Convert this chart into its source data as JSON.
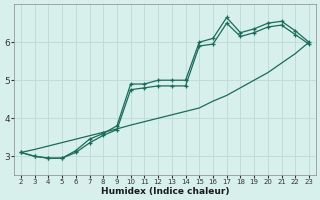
{
  "xlabel": "Humidex (Indice chaleur)",
  "x": [
    2,
    3,
    4,
    5,
    6,
    7,
    8,
    9,
    10,
    11,
    12,
    13,
    14,
    15,
    16,
    17,
    18,
    19,
    20,
    21,
    22,
    23
  ],
  "line_upper": [
    3.1,
    3.0,
    2.95,
    2.95,
    3.15,
    3.45,
    3.6,
    3.8,
    4.9,
    4.9,
    5.0,
    5.0,
    5.0,
    6.0,
    6.1,
    6.65,
    6.25,
    6.35,
    6.5,
    6.55,
    6.3,
    6.0
  ],
  "line_lower": [
    3.1,
    3.0,
    2.95,
    2.95,
    3.1,
    3.35,
    3.55,
    3.7,
    4.75,
    4.8,
    4.85,
    4.85,
    4.85,
    5.9,
    5.95,
    6.5,
    6.15,
    6.25,
    6.4,
    6.45,
    6.2,
    5.95
  ],
  "line_linear": [
    3.1,
    3.18,
    3.27,
    3.36,
    3.45,
    3.54,
    3.63,
    3.72,
    3.82,
    3.91,
    4.0,
    4.09,
    4.18,
    4.27,
    4.45,
    4.6,
    4.8,
    5.0,
    5.2,
    5.45,
    5.7,
    6.0
  ],
  "line_color": "#1a6b5a",
  "bg_color": "#d8f0ec",
  "grid_color": "#c0ddd8",
  "ylim": [
    2.5,
    7.0
  ],
  "xlim": [
    2,
    23
  ],
  "yticks": [
    3,
    4,
    5,
    6
  ],
  "xticks": [
    2,
    3,
    4,
    5,
    6,
    7,
    8,
    9,
    10,
    11,
    12,
    13,
    14,
    15,
    16,
    17,
    18,
    19,
    20,
    21,
    22,
    23
  ]
}
